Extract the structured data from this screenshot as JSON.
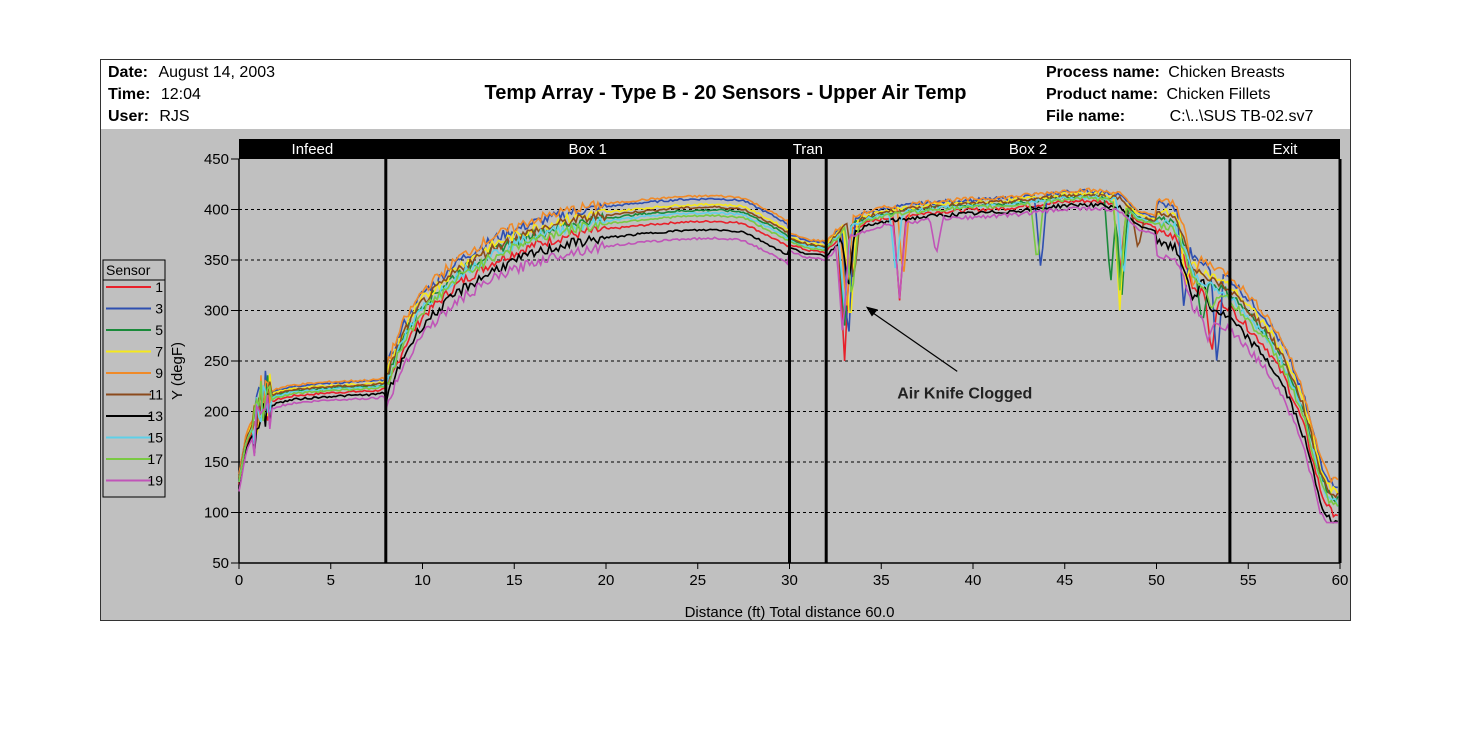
{
  "header": {
    "date_label": "Date:",
    "date_value": "August 14, 2003",
    "time_label": "Time:",
    "time_value": "12:04",
    "user_label": "User:",
    "user_value": "RJS",
    "title": "Temp Array - Type B - 20 Sensors - Upper Air Temp",
    "process_label": "Process name:",
    "process_value": "Chicken Breasts",
    "product_label": "Product name:",
    "product_value": "Chicken Fillets",
    "file_label": "File name:",
    "file_value": "C:\\..\\SUS TB-02.sv7"
  },
  "chart_data": {
    "type": "line",
    "xlabel": "Distance (ft) Total distance 60.0",
    "ylabel": "Y (degF)",
    "xlim": [
      0,
      60
    ],
    "ylim": [
      50,
      450
    ],
    "xticks": [
      0,
      5,
      10,
      15,
      20,
      25,
      30,
      35,
      40,
      45,
      50,
      55,
      60
    ],
    "yticks": [
      50,
      100,
      150,
      200,
      250,
      300,
      350,
      400,
      450
    ],
    "grid": "horizontal-dashed",
    "legend_title": "Sensor",
    "legend_position": "left",
    "zones": [
      {
        "label": "Infeed",
        "start": 0,
        "end": 8
      },
      {
        "label": "Box 1",
        "start": 8,
        "end": 30
      },
      {
        "label": "Tran",
        "start": 30,
        "end": 32
      },
      {
        "label": "Box 2",
        "start": 32,
        "end": 54
      },
      {
        "label": "Exit",
        "start": 54,
        "end": 60
      }
    ],
    "zone_boundaries": [
      8,
      30,
      32,
      54,
      60
    ],
    "annotation": {
      "text": "Air Knife Clogged",
      "x": 43.5,
      "y": 210,
      "arrow_to": [
        34,
        305
      ]
    },
    "colors": {
      "1": "#e8202a",
      "3": "#2e4fb0",
      "5": "#1a8a3a",
      "7": "#f5e81c",
      "9": "#f08a28",
      "11": "#8b4a1c",
      "13": "#000000",
      "15": "#5fd0e8",
      "17": "#7ac943",
      "19": "#c054b8"
    },
    "base_profile": {
      "x": [
        0,
        0.4,
        0.9,
        1.2,
        1.6,
        2,
        3,
        5,
        7.5,
        8,
        9,
        10,
        12,
        14,
        16,
        18,
        20,
        22,
        24,
        26,
        27.5,
        29,
        30,
        31,
        32,
        33,
        34,
        35,
        36,
        37,
        38,
        40,
        42,
        44,
        45,
        46,
        47,
        48,
        49,
        50,
        51,
        51.5,
        52,
        53,
        54,
        55,
        56,
        57,
        58,
        58.5,
        59,
        59.5,
        60
      ],
      "y": [
        130,
        170,
        190,
        205,
        210,
        214,
        218,
        221,
        223,
        225,
        270,
        300,
        333,
        355,
        370,
        380,
        386,
        390,
        393,
        394,
        392,
        378,
        368,
        362,
        360,
        380,
        388,
        393,
        396,
        398,
        400,
        402,
        404,
        408,
        410,
        411,
        410,
        408,
        390,
        385,
        380,
        360,
        330,
        320,
        310,
        290,
        270,
        240,
        195,
        160,
        125,
        108,
        105
      ]
    },
    "series": [
      {
        "name": "1",
        "offset": -4,
        "dips": [
          [
            33.0,
            250
          ],
          [
            36.0,
            310
          ],
          [
            48.0,
            335
          ],
          [
            53.0,
            255
          ]
        ]
      },
      {
        "name": "3",
        "offset": 12,
        "dips": [
          [
            33.2,
            265
          ],
          [
            43.7,
            340
          ],
          [
            51.5,
            300
          ],
          [
            53.3,
            245
          ]
        ]
      },
      {
        "name": "5",
        "offset": 4,
        "dips": [
          [
            33.0,
            285
          ],
          [
            47.5,
            325
          ],
          [
            48.1,
            310
          ],
          [
            52.5,
            285
          ]
        ]
      },
      {
        "name": "7",
        "offset": 8,
        "dips": [
          [
            33.3,
            280
          ],
          [
            48.0,
            300
          ],
          [
            51.6,
            325
          ]
        ]
      },
      {
        "name": "9",
        "offset": 14,
        "dips": [
          [
            33.1,
            300
          ],
          [
            36.2,
            330
          ],
          [
            52.0,
            320
          ]
        ]
      },
      {
        "name": "11",
        "offset": 6,
        "dips": [
          [
            33.5,
            330
          ],
          [
            49.0,
            360
          ],
          [
            52.8,
            330
          ]
        ]
      },
      {
        "name": "13",
        "offset": -10,
        "dips": [
          [
            33.2,
            320
          ],
          [
            52.5,
            335
          ]
        ]
      },
      {
        "name": "15",
        "offset": 2,
        "dips": [
          [
            33.0,
            300
          ],
          [
            35.8,
            335
          ],
          [
            48.2,
            330
          ]
        ]
      },
      {
        "name": "17",
        "offset": 0,
        "dips": [
          [
            33.4,
            310
          ],
          [
            43.5,
            345
          ],
          [
            48.0,
            320
          ],
          [
            53.0,
            300
          ]
        ]
      },
      {
        "name": "19",
        "offset": -16,
        "dips": [
          [
            32.9,
            275
          ],
          [
            36.0,
            312
          ],
          [
            38.0,
            355
          ],
          [
            52.8,
            270
          ]
        ]
      }
    ]
  }
}
